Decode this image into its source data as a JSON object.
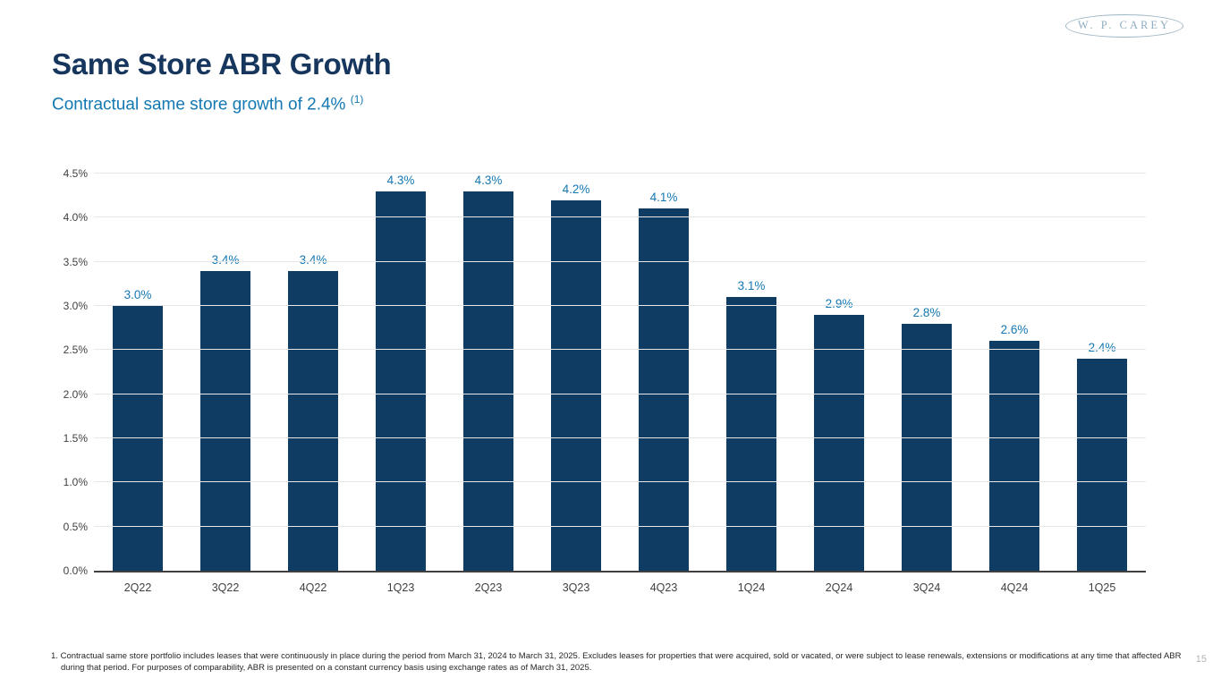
{
  "logo": {
    "text": "W. P. CAREY"
  },
  "header": {
    "title": "Same Store ABR Growth",
    "subtitle": "Contractual same store growth of 2.4%",
    "subtitle_superscript": "(1)"
  },
  "chart_data": {
    "type": "bar",
    "title": "",
    "xlabel": "",
    "ylabel": "",
    "categories": [
      "2Q22",
      "3Q22",
      "4Q22",
      "1Q23",
      "2Q23",
      "3Q23",
      "4Q23",
      "1Q24",
      "2Q24",
      "3Q24",
      "4Q24",
      "1Q25"
    ],
    "values": [
      3.0,
      3.4,
      3.4,
      4.3,
      4.3,
      4.2,
      4.1,
      3.1,
      2.9,
      2.8,
      2.6,
      2.4
    ],
    "value_labels": [
      "3.0%",
      "3.4%",
      "3.4%",
      "4.3%",
      "4.3%",
      "4.2%",
      "4.1%",
      "3.1%",
      "2.9%",
      "2.8%",
      "2.6%",
      "2.4%"
    ],
    "ylim": [
      0,
      4.5
    ],
    "ytick_values": [
      0,
      0.5,
      1.0,
      1.5,
      2.0,
      2.5,
      3.0,
      3.5,
      4.0,
      4.5
    ],
    "ytick_labels": [
      "0.0%",
      "0.5%",
      "1.0%",
      "1.5%",
      "2.0%",
      "2.5%",
      "3.0%",
      "3.5%",
      "4.0%",
      "4.5%"
    ],
    "grid": true,
    "legend": "none",
    "bar_color": "#0e3c63",
    "value_label_color": "#1478b3"
  },
  "footnote": {
    "marker": "1.",
    "text": "Contractual same store portfolio includes leases that were continuously in place during the period from March 31, 2024 to March 31, 2025. Excludes leases for properties that were acquired, sold or vacated, or were subject to lease renewals, extensions or modifications at any time that affected ABR during that period. For purposes of comparability, ABR is presented on a constant currency basis using exchange rates as of March 31, 2025."
  },
  "page_number": "15",
  "colors": {
    "title_navy": "#17365d",
    "accent_blue": "#1478b3",
    "bar_navy": "#0e3c63",
    "logo_slate": "#8fadbf",
    "gridline": "#e7e7e7",
    "axis": "#404040",
    "page_number_gray": "#b3b3b3"
  }
}
